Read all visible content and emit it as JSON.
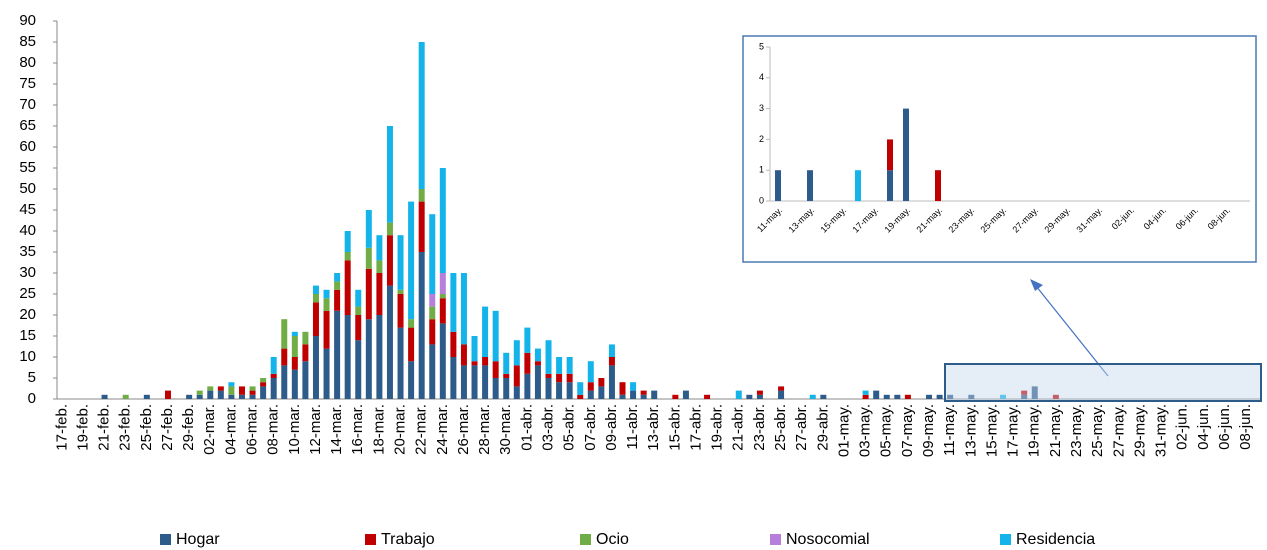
{
  "chart_data": [
    {
      "type": "bar",
      "stacked": true,
      "categories": [
        "17-feb.",
        null,
        "19-feb.",
        null,
        "21-feb.",
        null,
        "23-feb.",
        null,
        "25-feb.",
        null,
        "27-feb.",
        null,
        "29-feb.",
        null,
        "02-mar.",
        null,
        "04-mar.",
        null,
        "06-mar.",
        null,
        "08-mar.",
        null,
        "10-mar.",
        null,
        "12-mar.",
        null,
        "14-mar.",
        null,
        "16-mar.",
        null,
        "18-mar.",
        null,
        "20-mar.",
        null,
        "22-mar.",
        null,
        "24-mar.",
        null,
        "26-mar.",
        null,
        "28-mar.",
        null,
        "30-mar.",
        null,
        "01-abr.",
        null,
        "03-abr.",
        null,
        "05-abr.",
        null,
        "07-abr.",
        null,
        "09-abr.",
        null,
        "11-abr.",
        null,
        "13-abr.",
        null,
        "15-abr.",
        null,
        "17-abr.",
        null,
        "19-abr.",
        null,
        "21-abr.",
        null,
        "23-abr.",
        null,
        "25-abr.",
        null,
        "27-abr.",
        null,
        "29-abr.",
        null,
        "01-may.",
        null,
        "03-may.",
        null,
        "05-may.",
        null,
        "07-may.",
        null,
        "09-may.",
        null,
        "11-may.",
        null,
        "13-may.",
        null,
        "15-may.",
        null,
        "17-may.",
        null,
        "19-may.",
        null,
        "21-may.",
        null,
        "23-may.",
        null,
        "25-may.",
        null,
        "27-may.",
        null,
        "29-may.",
        null,
        "31-may.",
        null,
        "02-jun.",
        null,
        "04-jun.",
        null,
        "06-jun.",
        null,
        "08-jun.",
        null
      ],
      "series": [
        {
          "name": "Hogar",
          "color": "#2e5c8a",
          "values": [
            0,
            0,
            0,
            0,
            1,
            0,
            0,
            0,
            1,
            0,
            0,
            0,
            1,
            1,
            2,
            2,
            1,
            1,
            1,
            3,
            5,
            8,
            7,
            9,
            15,
            12,
            21,
            20,
            14,
            19,
            20,
            27,
            17,
            9,
            35,
            13,
            18,
            10,
            8,
            8,
            8,
            5,
            5,
            3,
            6,
            8,
            5,
            4,
            4,
            0,
            2,
            3,
            8,
            1,
            2,
            1,
            2,
            0,
            0,
            2,
            0,
            0,
            0,
            0,
            0,
            1,
            1,
            0,
            2,
            0,
            0,
            0,
            1,
            0,
            0,
            0,
            0,
            2,
            1,
            1,
            0,
            0,
            1,
            1,
            1,
            0,
            1,
            0,
            0,
            0,
            0,
            1,
            3,
            0,
            0,
            0,
            0,
            0,
            0,
            0,
            0,
            0,
            0,
            0,
            0,
            0,
            0,
            0,
            0,
            0,
            0,
            0,
            0,
            0
          ]
        },
        {
          "name": "Trabajo",
          "color": "#c00000",
          "values": [
            0,
            0,
            0,
            0,
            0,
            0,
            0,
            0,
            0,
            0,
            2,
            0,
            0,
            0,
            0,
            1,
            0,
            2,
            1,
            1,
            1,
            4,
            3,
            4,
            8,
            9,
            5,
            13,
            6,
            12,
            10,
            12,
            8,
            8,
            12,
            6,
            6,
            6,
            5,
            1,
            2,
            4,
            1,
            5,
            5,
            1,
            1,
            2,
            2,
            1,
            2,
            2,
            2,
            3,
            0,
            1,
            0,
            0,
            1,
            0,
            0,
            1,
            0,
            0,
            0,
            0,
            1,
            0,
            1,
            0,
            0,
            0,
            0,
            0,
            0,
            0,
            1,
            0,
            0,
            0,
            1,
            0,
            0,
            0,
            0,
            0,
            0,
            0,
            0,
            0,
            0,
            1,
            0,
            0,
            1,
            0,
            0,
            0,
            0,
            0,
            0,
            0,
            0,
            0,
            0,
            0,
            0,
            0,
            0,
            0,
            0,
            0,
            0,
            0
          ]
        },
        {
          "name": "Ocio",
          "color": "#70ad47",
          "values": [
            0,
            0,
            0,
            0,
            0,
            0,
            1,
            0,
            0,
            0,
            0,
            0,
            0,
            1,
            1,
            0,
            2,
            0,
            1,
            1,
            0,
            7,
            5,
            3,
            2,
            3,
            2,
            2,
            2,
            5,
            3,
            3,
            1,
            2,
            3,
            3,
            1,
            0,
            0,
            0,
            0,
            0,
            0,
            0,
            0,
            0,
            0,
            0,
            0,
            0,
            0,
            0,
            0,
            0,
            0,
            0,
            0,
            0,
            0,
            0,
            0,
            0,
            0,
            0,
            0,
            0,
            0,
            0,
            0,
            0,
            0,
            0,
            0,
            0,
            0,
            0,
            0,
            0,
            0,
            0,
            0,
            0,
            0,
            0,
            0,
            0,
            0,
            0,
            0,
            0,
            0,
            0,
            0,
            0,
            0,
            0,
            0,
            0,
            0,
            0,
            0,
            0,
            0,
            0,
            0,
            0,
            0,
            0,
            0,
            0,
            0,
            0,
            0,
            0
          ]
        },
        {
          "name": "Nosocomial",
          "color": "#b57fdb",
          "values": [
            0,
            0,
            0,
            0,
            0,
            0,
            0,
            0,
            0,
            0,
            0,
            0,
            0,
            0,
            0,
            0,
            0,
            0,
            0,
            0,
            0,
            0,
            0,
            0,
            0,
            0,
            0,
            0,
            0,
            0,
            0,
            0,
            0,
            0,
            0,
            3,
            5,
            0,
            0,
            0,
            0,
            0,
            0,
            0,
            0,
            0,
            0,
            0,
            0,
            0,
            0,
            0,
            0,
            0,
            0,
            0,
            0,
            0,
            0,
            0,
            0,
            0,
            0,
            0,
            0,
            0,
            0,
            0,
            0,
            0,
            0,
            0,
            0,
            0,
            0,
            0,
            0,
            0,
            0,
            0,
            0,
            0,
            0,
            0,
            0,
            0,
            0,
            0,
            0,
            0,
            0,
            0,
            0,
            0,
            0,
            0,
            0,
            0,
            0,
            0,
            0,
            0,
            0,
            0,
            0,
            0,
            0,
            0,
            0,
            0,
            0,
            0,
            0,
            0
          ]
        },
        {
          "name": "Residencia",
          "color": "#14b4ea",
          "values": [
            0,
            0,
            0,
            0,
            0,
            0,
            0,
            0,
            0,
            0,
            0,
            0,
            0,
            0,
            0,
            0,
            1,
            0,
            0,
            0,
            4,
            0,
            1,
            0,
            2,
            2,
            2,
            5,
            4,
            9,
            6,
            23,
            13,
            28,
            35,
            19,
            25,
            14,
            17,
            6,
            12,
            12,
            5,
            6,
            6,
            3,
            8,
            4,
            4,
            3,
            5,
            0,
            3,
            0,
            2,
            0,
            0,
            0,
            0,
            0,
            0,
            0,
            0,
            0,
            2,
            0,
            0,
            0,
            0,
            0,
            0,
            1,
            0,
            0,
            0,
            0,
            1,
            0,
            0,
            0,
            0,
            0,
            0,
            0,
            0,
            0,
            0,
            0,
            0,
            1,
            0,
            0,
            0,
            0,
            0,
            0,
            0,
            0,
            0,
            0,
            0,
            0,
            0,
            0,
            0,
            0,
            0,
            0,
            0,
            0,
            0,
            0,
            0,
            0
          ]
        }
      ],
      "ylim": [
        0,
        90
      ],
      "yticks": [
        0,
        5,
        10,
        15,
        20,
        25,
        30,
        35,
        40,
        45,
        50,
        55,
        60,
        65,
        70,
        75,
        80,
        85,
        90
      ]
    },
    {
      "type": "bar",
      "stacked": true,
      "categories": [
        "11-may.",
        null,
        "13-may.",
        null,
        "15-may.",
        null,
        "17-may.",
        null,
        "19-may.",
        null,
        "21-may.",
        null,
        "23-may.",
        null,
        "25-may.",
        null,
        "27-may.",
        null,
        "29-may.",
        null,
        "31-may.",
        null,
        "02-jun.",
        null,
        "04-jun.",
        null,
        "06-jun.",
        null,
        "08-jun.",
        null
      ],
      "series": [
        {
          "color": "#2e5c8a",
          "values": [
            1,
            0,
            1,
            0,
            0,
            0,
            0,
            1,
            3,
            0,
            0,
            0,
            0,
            0,
            0,
            0,
            0,
            0,
            0,
            0,
            0,
            0,
            0,
            0,
            0,
            0,
            0,
            0,
            0,
            0
          ]
        },
        {
          "color": "#c00000",
          "values": [
            0,
            0,
            0,
            0,
            0,
            0,
            0,
            1,
            0,
            0,
            1,
            0,
            0,
            0,
            0,
            0,
            0,
            0,
            0,
            0,
            0,
            0,
            0,
            0,
            0,
            0,
            0,
            0,
            0,
            0
          ]
        },
        {
          "color": "#14b4ea",
          "values": [
            0,
            0,
            0,
            0,
            0,
            1,
            0,
            0,
            0,
            0,
            0,
            0,
            0,
            0,
            0,
            0,
            0,
            0,
            0,
            0,
            0,
            0,
            0,
            0,
            0,
            0,
            0,
            0,
            0,
            0
          ]
        }
      ],
      "ylim": [
        0,
        5
      ],
      "yticks": [
        0,
        1,
        2,
        3,
        4,
        5
      ]
    }
  ]
}
